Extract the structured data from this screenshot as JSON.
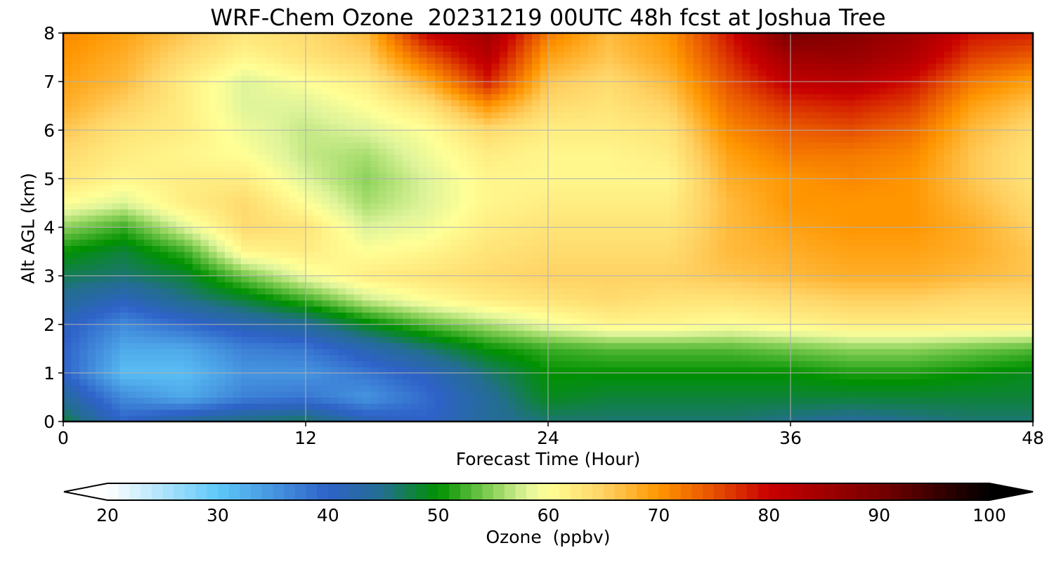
{
  "chart_data": {
    "type": "heatmap",
    "title": "WRF-Chem Ozone  20231219 00UTC 48h fcst at Joshua Tree",
    "xlabel": "Forecast Time (Hour)",
    "ylabel": "Alt AGL (km)",
    "xlim": [
      0,
      48
    ],
    "ylim": [
      0,
      8
    ],
    "xticks": [
      0,
      12,
      24,
      36,
      48
    ],
    "yticks": [
      0,
      1,
      2,
      3,
      4,
      5,
      6,
      7,
      8
    ],
    "grid": true,
    "x_hours": [
      0,
      3,
      6,
      9,
      12,
      15,
      18,
      21,
      24,
      27,
      30,
      33,
      36,
      39,
      42,
      45,
      48
    ],
    "z_km": [
      0,
      0.5,
      1,
      1.5,
      2,
      2.5,
      3,
      3.5,
      4,
      4.5,
      5,
      5.5,
      6,
      6.5,
      7,
      7.5,
      8
    ],
    "ozone_ppbv": [
      [
        48,
        40,
        44,
        46,
        47,
        42,
        40,
        44,
        46,
        46,
        46,
        46,
        45,
        44,
        45,
        46,
        46
      ],
      [
        44,
        36,
        33,
        37,
        38,
        35,
        39,
        44,
        49,
        48,
        48,
        48,
        48,
        48,
        48,
        48,
        48
      ],
      [
        40,
        31,
        31,
        35,
        35,
        38,
        41,
        46,
        50,
        50,
        50,
        50,
        50,
        51,
        51,
        50,
        49
      ],
      [
        40,
        33,
        33,
        37,
        38,
        42,
        46,
        50,
        52,
        53,
        53,
        53,
        54,
        55,
        55,
        54,
        53
      ],
      [
        41,
        36,
        39,
        42,
        44,
        49,
        53,
        56,
        59,
        61,
        61,
        60,
        61,
        62,
        62,
        62,
        62
      ],
      [
        44,
        41,
        45,
        48,
        52,
        57,
        60,
        62,
        63,
        64,
        63,
        63,
        64,
        65,
        65,
        64,
        64
      ],
      [
        47,
        46,
        48,
        54,
        59,
        62,
        63,
        64,
        65,
        65,
        65,
        66,
        67,
        68,
        68,
        67,
        66
      ],
      [
        50,
        48,
        52,
        61,
        62,
        60,
        61,
        63,
        64,
        64,
        64,
        67,
        68,
        69,
        69,
        68,
        66
      ],
      [
        55,
        52,
        58,
        64,
        63,
        58,
        59,
        62,
        63,
        63,
        63,
        67,
        69,
        70,
        70,
        68,
        65
      ],
      [
        60,
        58,
        62,
        64,
        60,
        56,
        58,
        61,
        62,
        62,
        62,
        67,
        70,
        70,
        70,
        67,
        64
      ],
      [
        63,
        61,
        62,
        62,
        58,
        55,
        58,
        61,
        61,
        61,
        61,
        68,
        70,
        71,
        70,
        66,
        63
      ],
      [
        64,
        62,
        61,
        60,
        57,
        56,
        59,
        62,
        61,
        61,
        62,
        69,
        72,
        72,
        71,
        66,
        63
      ],
      [
        66,
        63,
        62,
        59,
        57,
        58,
        60,
        64,
        62,
        62,
        63,
        71,
        74,
        75,
        73,
        67,
        64
      ],
      [
        68,
        65,
        62,
        58,
        58,
        60,
        63,
        70,
        64,
        63,
        65,
        73,
        77,
        78,
        76,
        69,
        66
      ],
      [
        69,
        67,
        62,
        58,
        60,
        62,
        68,
        78,
        66,
        64,
        67,
        75,
        81,
        82,
        79,
        72,
        69
      ],
      [
        70,
        68,
        64,
        61,
        63,
        65,
        74,
        82,
        69,
        66,
        69,
        77,
        85,
        86,
        83,
        76,
        74
      ],
      [
        71,
        69,
        66,
        63,
        64,
        67,
        80,
        85,
        72,
        67,
        70,
        79,
        90,
        88,
        85,
        79,
        78
      ]
    ],
    "colorbar": {
      "label": "Ozone  (ppbv)",
      "min": 20,
      "max": 100,
      "ticks": [
        20,
        30,
        40,
        50,
        60,
        70,
        80,
        90,
        100
      ],
      "extend": "both",
      "stops": [
        {
          "v": 20,
          "c": "#ffffff"
        },
        {
          "v": 30,
          "c": "#5ec8f8"
        },
        {
          "v": 40,
          "c": "#2e62c8"
        },
        {
          "v": 45,
          "c": "#236e8e"
        },
        {
          "v": 50,
          "c": "#009100"
        },
        {
          "v": 55,
          "c": "#8cd25a"
        },
        {
          "v": 58,
          "c": "#dff49a"
        },
        {
          "v": 60,
          "c": "#ffff96"
        },
        {
          "v": 65,
          "c": "#ffd264"
        },
        {
          "v": 70,
          "c": "#ff9600"
        },
        {
          "v": 75,
          "c": "#e65000"
        },
        {
          "v": 80,
          "c": "#c80000"
        },
        {
          "v": 90,
          "c": "#780000"
        },
        {
          "v": 100,
          "c": "#000000"
        }
      ]
    }
  }
}
